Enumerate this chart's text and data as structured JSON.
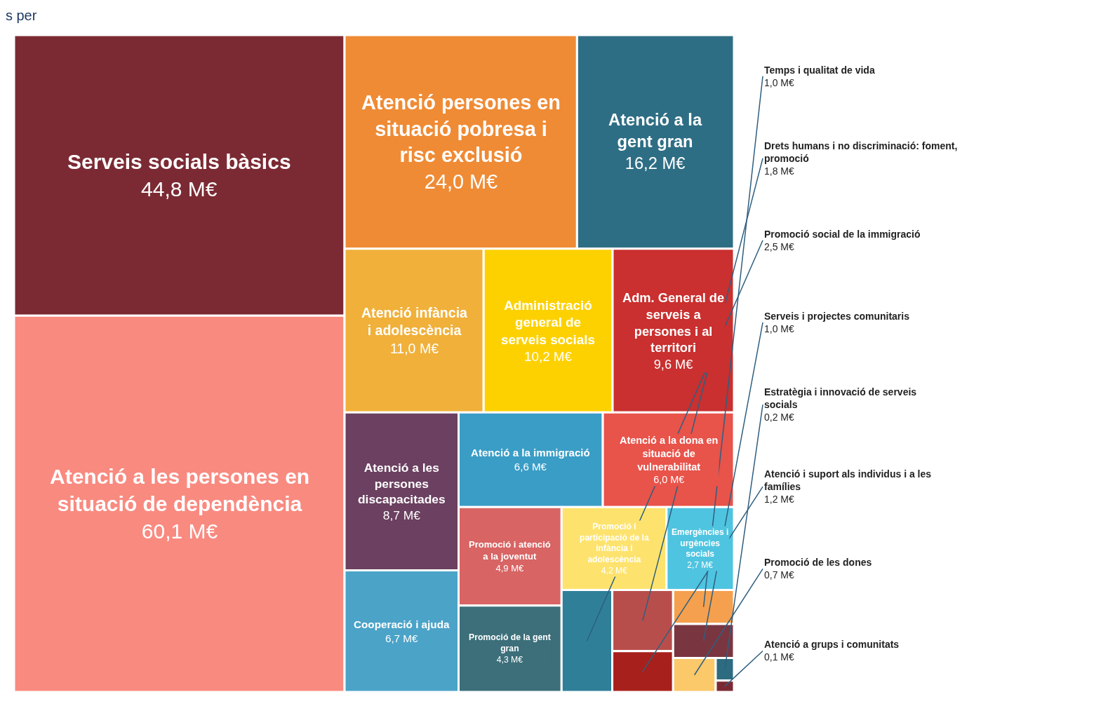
{
  "chart_data": {
    "type": "other",
    "title": "s per",
    "categories": [
      "Serveis socials bàsics",
      "Atenció a les persones en situació de dependència",
      "Atenció persones en situació pobresa i risc exclusió",
      "Atenció a la gent gran",
      "Atenció infància i adolescència",
      "Administració general de serveis socials",
      "Adm. General de serveis a persones i al territori",
      "Atenció a les persones discapacitades",
      "Cooperació i ajuda",
      "Atenció a la immigració",
      "Atenció a la dona en situació de vulnerabilitat",
      "Promoció i atenció a la joventut",
      "Promoció de la gent gran",
      "Promoció i participació de la infància i adolescència",
      "Emergències i urgències socials",
      "Promoció social de la immigració",
      "Drets humans i no discriminació: foment, promoció",
      "Atenció i suport als individus i a les famílies",
      "Temps i qualitat de vida",
      "Serveis i projectes comunitaris",
      "Promoció de les dones",
      "Estratègia i innovació de serveis socials",
      "Atenció a grups i comunitats"
    ],
    "values": [
      44.8,
      60.1,
      24.0,
      16.2,
      11.0,
      10.2,
      9.6,
      8.7,
      6.7,
      6.6,
      6.0,
      4.9,
      4.3,
      4.2,
      2.7,
      2.5,
      1.8,
      1.2,
      1.0,
      1.0,
      0.7,
      0.2,
      0.1
    ],
    "value_labels": [
      "44,8 M€",
      "60,1 M€",
      "24,0 M€",
      "16,2 M€",
      "11,0 M€",
      "10,2 M€",
      "9,6 M€",
      "8,7 M€",
      "6,7 M€",
      "6,6 M€",
      "6,0 M€",
      "4,9 M€",
      "4,3 M€",
      "4,2 M€",
      "2,7 M€",
      "2,5 M€",
      "1,8 M€",
      "1,2 M€",
      "1,0 M€",
      "1,0 M€",
      "0,7 M€",
      "0,2 M€",
      "0,1 M€"
    ],
    "colors": [
      "#7b2a33",
      "#f98a80",
      "#ef8b35",
      "#2e6e84",
      "#f0b03a",
      "#fdd100",
      "#c9302f",
      "#6b4060",
      "#4ba3c8",
      "#3a9dc6",
      "#e8534a",
      "#d86464",
      "#3c6f7a",
      "#fde36e",
      "#4fc4e0",
      "#2f7f98",
      "#b84e4c",
      "#a8201c",
      "#f5a04e",
      "#7a3640",
      "#fbc86a",
      "#2d6b80",
      "#7b2a33"
    ]
  }
}
